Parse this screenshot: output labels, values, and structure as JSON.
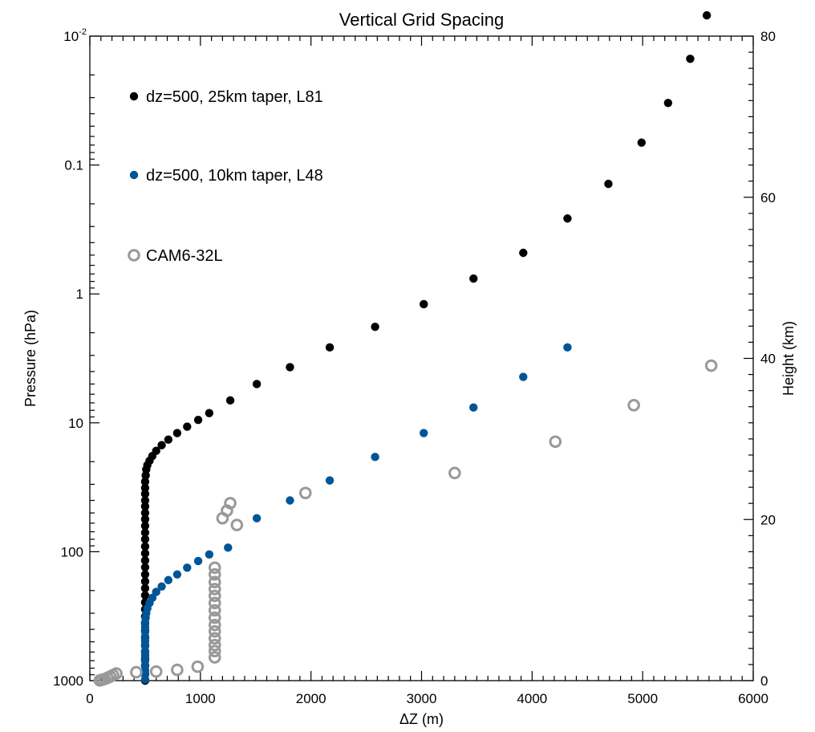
{
  "chart_data": {
    "type": "scatter",
    "title": "Vertical Grid Spacing",
    "xlabel": "ΔZ (m)",
    "ylabel": "Pressure (hPa)",
    "y2label": "Height (km)",
    "xlim": [
      0,
      6000
    ],
    "ylim_pressure": [
      1000,
      0.01
    ],
    "y_scale": "log",
    "y2lim_km": [
      0,
      80
    ],
    "grid": false,
    "legend_position": "top-left",
    "x_ticks": [
      "0",
      "1000",
      "2000",
      "3000",
      "4000",
      "5000",
      "6000"
    ],
    "y_ticks": [
      {
        "value": 1000,
        "label": "1000"
      },
      {
        "value": 100,
        "label": "100"
      },
      {
        "value": 10,
        "label": "10"
      },
      {
        "value": 1,
        "label": "1"
      },
      {
        "value": 0.1,
        "label": "0.1"
      },
      {
        "value": 0.01,
        "label": "10",
        "sup": "-2"
      }
    ],
    "y2_ticks": [
      "0",
      "20",
      "40",
      "60",
      "80"
    ],
    "series": [
      {
        "name": "dz=500, 25km taper, L81",
        "color": "#000000",
        "marker": "filled-circle",
        "points": [
          [
            500,
            1000
          ],
          [
            500,
            880
          ],
          [
            500,
            770
          ],
          [
            500,
            680
          ],
          [
            500,
            600
          ],
          [
            500,
            530
          ],
          [
            500,
            465
          ],
          [
            500,
            410
          ],
          [
            500,
            360
          ],
          [
            500,
            318
          ],
          [
            500,
            280
          ],
          [
            500,
            247
          ],
          [
            500,
            218
          ],
          [
            500,
            192
          ],
          [
            500,
            170
          ],
          [
            500,
            150
          ],
          [
            500,
            132
          ],
          [
            500,
            117
          ],
          [
            500,
            103
          ],
          [
            500,
            91
          ],
          [
            500,
            80
          ],
          [
            500,
            71
          ],
          [
            500,
            63
          ],
          [
            500,
            56
          ],
          [
            500,
            50
          ],
          [
            500,
            44.5
          ],
          [
            500,
            40
          ],
          [
            500,
            35.6
          ],
          [
            500,
            32
          ],
          [
            500,
            28.6
          ],
          [
            505,
            25.6
          ],
          [
            510,
            23
          ],
          [
            520,
            21.3
          ],
          [
            540,
            19.7
          ],
          [
            565,
            18.1
          ],
          [
            600,
            16.5
          ],
          [
            650,
            14.9
          ],
          [
            710,
            13.5
          ],
          [
            790,
            12
          ],
          [
            880,
            10.7
          ],
          [
            980,
            9.5
          ],
          [
            1080,
            8.4
          ],
          [
            1270,
            6.7
          ],
          [
            1510,
            5
          ],
          [
            1810,
            3.7
          ],
          [
            2170,
            2.6
          ],
          [
            2580,
            1.8
          ],
          [
            3020,
            1.2
          ],
          [
            3470,
            0.76
          ],
          [
            3920,
            0.48
          ],
          [
            4320,
            0.26
          ],
          [
            4690,
            0.14
          ],
          [
            4990,
            0.067
          ],
          [
            5230,
            0.033
          ],
          [
            5430,
            0.015
          ],
          [
            5580,
            0.0069
          ]
        ]
      },
      {
        "name": "dz=500, 10km taper, L48",
        "color": "#005596",
        "marker": "filled-circle",
        "points": [
          [
            500,
            980
          ],
          [
            500,
            900
          ],
          [
            500,
            830
          ],
          [
            500,
            760
          ],
          [
            500,
            700
          ],
          [
            500,
            640
          ],
          [
            500,
            590
          ],
          [
            500,
            540
          ],
          [
            500,
            495
          ],
          [
            500,
            455
          ],
          [
            500,
            418
          ],
          [
            500,
            385
          ],
          [
            500,
            352
          ],
          [
            505,
            325
          ],
          [
            510,
            300
          ],
          [
            520,
            275
          ],
          [
            540,
            250
          ],
          [
            565,
            228
          ],
          [
            600,
            205
          ],
          [
            650,
            186
          ],
          [
            710,
            166
          ],
          [
            790,
            150
          ],
          [
            880,
            133
          ],
          [
            980,
            118
          ],
          [
            1080,
            105
          ],
          [
            1250,
            93
          ],
          [
            1510,
            55
          ],
          [
            1810,
            40
          ],
          [
            2170,
            28
          ],
          [
            2580,
            18.4
          ],
          [
            3020,
            12
          ],
          [
            3470,
            7.6
          ],
          [
            3920,
            4.4
          ],
          [
            4320,
            2.6
          ]
        ]
      },
      {
        "name": "CAM6-32L",
        "color": "#999999",
        "marker": "open-circle",
        "points": [
          [
            90,
            996
          ],
          [
            110,
            985
          ],
          [
            135,
            970
          ],
          [
            160,
            950
          ],
          [
            185,
            930
          ],
          [
            210,
            905
          ],
          [
            240,
            880
          ],
          [
            420,
            860
          ],
          [
            600,
            850
          ],
          [
            790,
            825
          ],
          [
            975,
            780
          ],
          [
            1130,
            660
          ],
          [
            1130,
            590
          ],
          [
            1130,
            530
          ],
          [
            1130,
            470
          ],
          [
            1130,
            415
          ],
          [
            1130,
            370
          ],
          [
            1130,
            325
          ],
          [
            1130,
            285
          ],
          [
            1130,
            250
          ],
          [
            1130,
            220
          ],
          [
            1130,
            195
          ],
          [
            1130,
            172
          ],
          [
            1130,
            150
          ],
          [
            1130,
            133
          ],
          [
            1330,
            62
          ],
          [
            1200,
            55
          ],
          [
            1240,
            48
          ],
          [
            1270,
            42
          ],
          [
            1950,
            35
          ],
          [
            3300,
            24.5
          ],
          [
            4210,
            14
          ],
          [
            4920,
            7.3
          ],
          [
            5620,
            3.6
          ]
        ]
      }
    ]
  }
}
